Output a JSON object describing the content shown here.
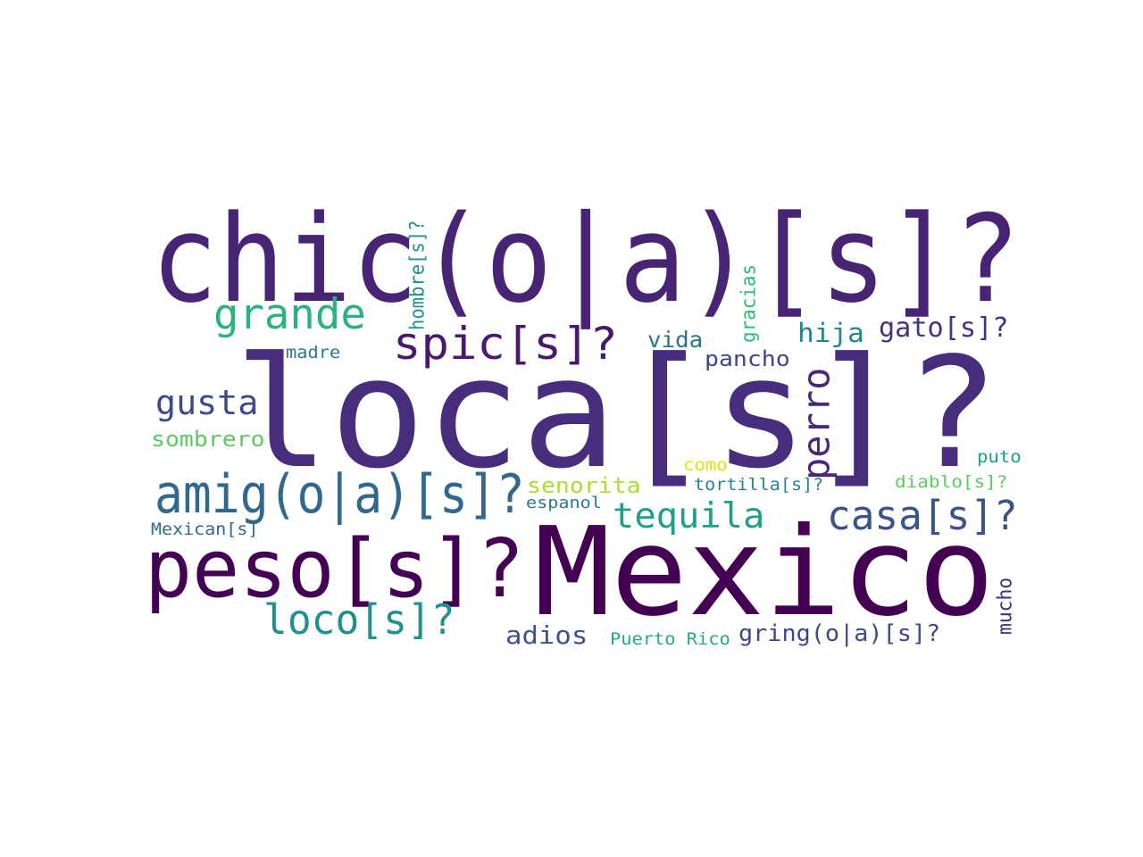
{
  "wordcloud": {
    "words": [
      {
        "id": "loca",
        "text": "loca[s]?",
        "color": "#472d7b",
        "orientation": "horizontal"
      },
      {
        "id": "mexico",
        "text": "Mexico",
        "color": "#440154",
        "orientation": "horizontal"
      },
      {
        "id": "chic",
        "text": "chic(o|a)[s]?",
        "color": "#482475",
        "orientation": "horizontal"
      },
      {
        "id": "peso",
        "text": "peso[s]?",
        "color": "#440154",
        "orientation": "horizontal"
      },
      {
        "id": "amig",
        "text": "amig(o|a)[s]?",
        "color": "#31688e",
        "orientation": "horizontal"
      },
      {
        "id": "grande",
        "text": "grande",
        "color": "#2db27d",
        "orientation": "horizontal"
      },
      {
        "id": "spic",
        "text": "spic[s]?",
        "color": "#481a6c",
        "orientation": "horizontal"
      },
      {
        "id": "gusta",
        "text": "gusta",
        "color": "#3e4989",
        "orientation": "horizontal"
      },
      {
        "id": "loco",
        "text": "loco[s]?",
        "color": "#21918c",
        "orientation": "horizontal"
      },
      {
        "id": "tequila",
        "text": "tequila",
        "color": "#1f9e89",
        "orientation": "horizontal"
      },
      {
        "id": "casa",
        "text": "casa[s]?",
        "color": "#3b528b",
        "orientation": "horizontal"
      },
      {
        "id": "perro",
        "text": "perro",
        "color": "#482878",
        "orientation": "vertical"
      },
      {
        "id": "hija",
        "text": "hija",
        "color": "#25858e",
        "orientation": "horizontal"
      },
      {
        "id": "gato",
        "text": "gato[s]?",
        "color": "#46327e",
        "orientation": "horizontal"
      },
      {
        "id": "vida",
        "text": "vida",
        "color": "#2c728e",
        "orientation": "horizontal"
      },
      {
        "id": "pancho",
        "text": "pancho",
        "color": "#414487",
        "orientation": "horizontal"
      },
      {
        "id": "adios",
        "text": "adios",
        "color": "#3b528b",
        "orientation": "horizontal"
      },
      {
        "id": "sombrero",
        "text": "sombrero",
        "color": "#5ec962",
        "orientation": "horizontal"
      },
      {
        "id": "senorita",
        "text": "senorita",
        "color": "#addc30",
        "orientation": "horizontal"
      },
      {
        "id": "hombre",
        "text": "hombre[s]?",
        "color": "#21918c",
        "orientation": "vertical"
      },
      {
        "id": "gracias",
        "text": "gracias",
        "color": "#35b779",
        "orientation": "vertical"
      },
      {
        "id": "madre",
        "text": "madre",
        "color": "#2a788e",
        "orientation": "horizontal"
      },
      {
        "id": "como",
        "text": "como",
        "color": "#dde318",
        "orientation": "horizontal"
      },
      {
        "id": "tortilla",
        "text": "tortilla[s]?",
        "color": "#26828e",
        "orientation": "horizontal"
      },
      {
        "id": "espanol",
        "text": "espanol",
        "color": "#2a788e",
        "orientation": "horizontal"
      },
      {
        "id": "mexican",
        "text": "Mexican[s]",
        "color": "#31688e",
        "orientation": "horizontal"
      },
      {
        "id": "puto",
        "text": "puto",
        "color": "#1f9e89",
        "orientation": "horizontal"
      },
      {
        "id": "diablo",
        "text": "diablo[s]?",
        "color": "#5ec962",
        "orientation": "horizontal"
      },
      {
        "id": "mucho",
        "text": "mucho",
        "color": "#472c7a",
        "orientation": "vertical"
      },
      {
        "id": "puerto-rico",
        "text": "Puerto Rico",
        "color": "#22a884",
        "orientation": "horizontal"
      },
      {
        "id": "gring",
        "text": "gring(o|a)[s]?",
        "color": "#3e4989",
        "orientation": "horizontal"
      }
    ]
  }
}
